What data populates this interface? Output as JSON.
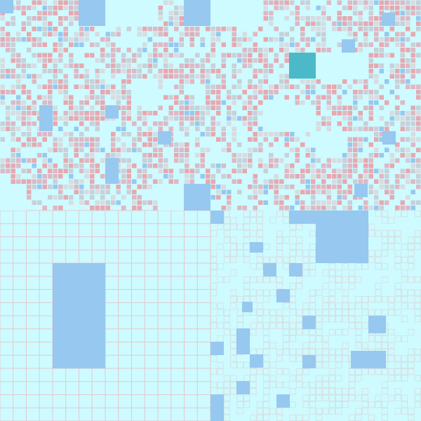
{
  "board": {
    "rows": 64,
    "cols": 64,
    "tile_states": [
      "covered",
      "blue-flag",
      "red-dense",
      "mixed",
      "revealed",
      "cursor"
    ],
    "colors": {
      "background": "#cdfbff",
      "grid_line": "#e4c8d0",
      "blue_cell": "#96c8f0",
      "cursor_cell": "#4bb9c8",
      "red_a": "#e8a8b0",
      "red_b": "#dfb8c4",
      "gray_a": "#d8dce0",
      "gray_b": "#c8d0d8"
    },
    "regions": [
      {
        "name": "upper-dense-field",
        "kind": "mixed"
      },
      {
        "name": "lower-left-grid",
        "kind": "revealed"
      },
      {
        "name": "lower-right-mesh",
        "kind": "covered"
      }
    ]
  }
}
